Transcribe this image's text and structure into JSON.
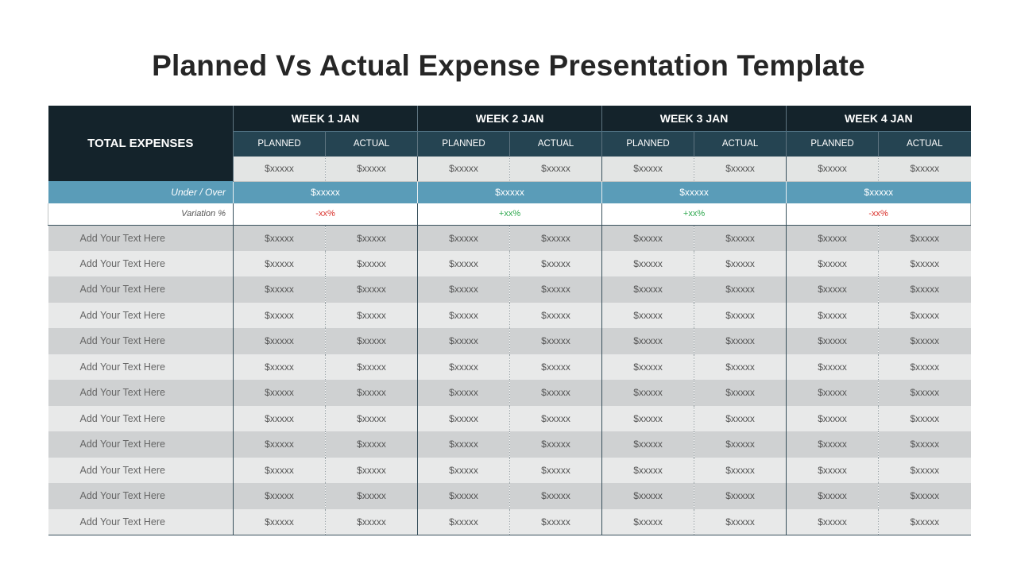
{
  "title": "Planned Vs Actual Expense Presentation Template",
  "header": {
    "total_label": "TOTAL EXPENSES",
    "weeks": [
      "WEEK 1 JAN",
      "WEEK 2 JAN",
      "WEEK 3 JAN",
      "WEEK 4 JAN"
    ],
    "planned_label": "PLANNED",
    "actual_label": "ACTUAL"
  },
  "totals": [
    "$xxxxx",
    "$xxxxx",
    "$xxxxx",
    "$xxxxx",
    "$xxxxx",
    "$xxxxx",
    "$xxxxx",
    "$xxxxx"
  ],
  "under_over": {
    "label": "Under / Over",
    "values": [
      "$xxxxx",
      "$xxxxx",
      "$xxxxx",
      "$xxxxx"
    ]
  },
  "variation": {
    "label": "Variation %",
    "values": [
      "-xx%",
      "+xx%",
      "+xx%",
      "-xx%"
    ],
    "colors": [
      "#d9302a",
      "#2fa84f",
      "#2fa84f",
      "#d9302a"
    ]
  },
  "rows": [
    {
      "label": "Add Your Text Here",
      "values": [
        "$xxxxx",
        "$xxxxx",
        "$xxxxx",
        "$xxxxx",
        "$xxxxx",
        "$xxxxx",
        "$xxxxx",
        "$xxxxx"
      ]
    },
    {
      "label": "Add Your Text Here",
      "values": [
        "$xxxxx",
        "$xxxxx",
        "$xxxxx",
        "$xxxxx",
        "$xxxxx",
        "$xxxxx",
        "$xxxxx",
        "$xxxxx"
      ]
    },
    {
      "label": "Add Your Text Here",
      "values": [
        "$xxxxx",
        "$xxxxx",
        "$xxxxx",
        "$xxxxx",
        "$xxxxx",
        "$xxxxx",
        "$xxxxx",
        "$xxxxx"
      ]
    },
    {
      "label": "Add Your Text Here",
      "values": [
        "$xxxxx",
        "$xxxxx",
        "$xxxxx",
        "$xxxxx",
        "$xxxxx",
        "$xxxxx",
        "$xxxxx",
        "$xxxxx"
      ]
    },
    {
      "label": "Add Your Text Here",
      "values": [
        "$xxxxx",
        "$xxxxx",
        "$xxxxx",
        "$xxxxx",
        "$xxxxx",
        "$xxxxx",
        "$xxxxx",
        "$xxxxx"
      ]
    },
    {
      "label": "Add Your Text Here",
      "values": [
        "$xxxxx",
        "$xxxxx",
        "$xxxxx",
        "$xxxxx",
        "$xxxxx",
        "$xxxxx",
        "$xxxxx",
        "$xxxxx"
      ]
    },
    {
      "label": "Add Your Text Here",
      "values": [
        "$xxxxx",
        "$xxxxx",
        "$xxxxx",
        "$xxxxx",
        "$xxxxx",
        "$xxxxx",
        "$xxxxx",
        "$xxxxx"
      ]
    },
    {
      "label": "Add Your Text Here",
      "values": [
        "$xxxxx",
        "$xxxxx",
        "$xxxxx",
        "$xxxxx",
        "$xxxxx",
        "$xxxxx",
        "$xxxxx",
        "$xxxxx"
      ]
    },
    {
      "label": "Add Your Text Here",
      "values": [
        "$xxxxx",
        "$xxxxx",
        "$xxxxx",
        "$xxxxx",
        "$xxxxx",
        "$xxxxx",
        "$xxxxx",
        "$xxxxx"
      ]
    },
    {
      "label": "Add Your Text Here",
      "values": [
        "$xxxxx",
        "$xxxxx",
        "$xxxxx",
        "$xxxxx",
        "$xxxxx",
        "$xxxxx",
        "$xxxxx",
        "$xxxxx"
      ]
    },
    {
      "label": "Add Your Text Here",
      "values": [
        "$xxxxx",
        "$xxxxx",
        "$xxxxx",
        "$xxxxx",
        "$xxxxx",
        "$xxxxx",
        "$xxxxx",
        "$xxxxx"
      ]
    },
    {
      "label": "Add Your Text Here",
      "values": [
        "$xxxxx",
        "$xxxxx",
        "$xxxxx",
        "$xxxxx",
        "$xxxxx",
        "$xxxxx",
        "$xxxxx",
        "$xxxxx"
      ]
    }
  ]
}
